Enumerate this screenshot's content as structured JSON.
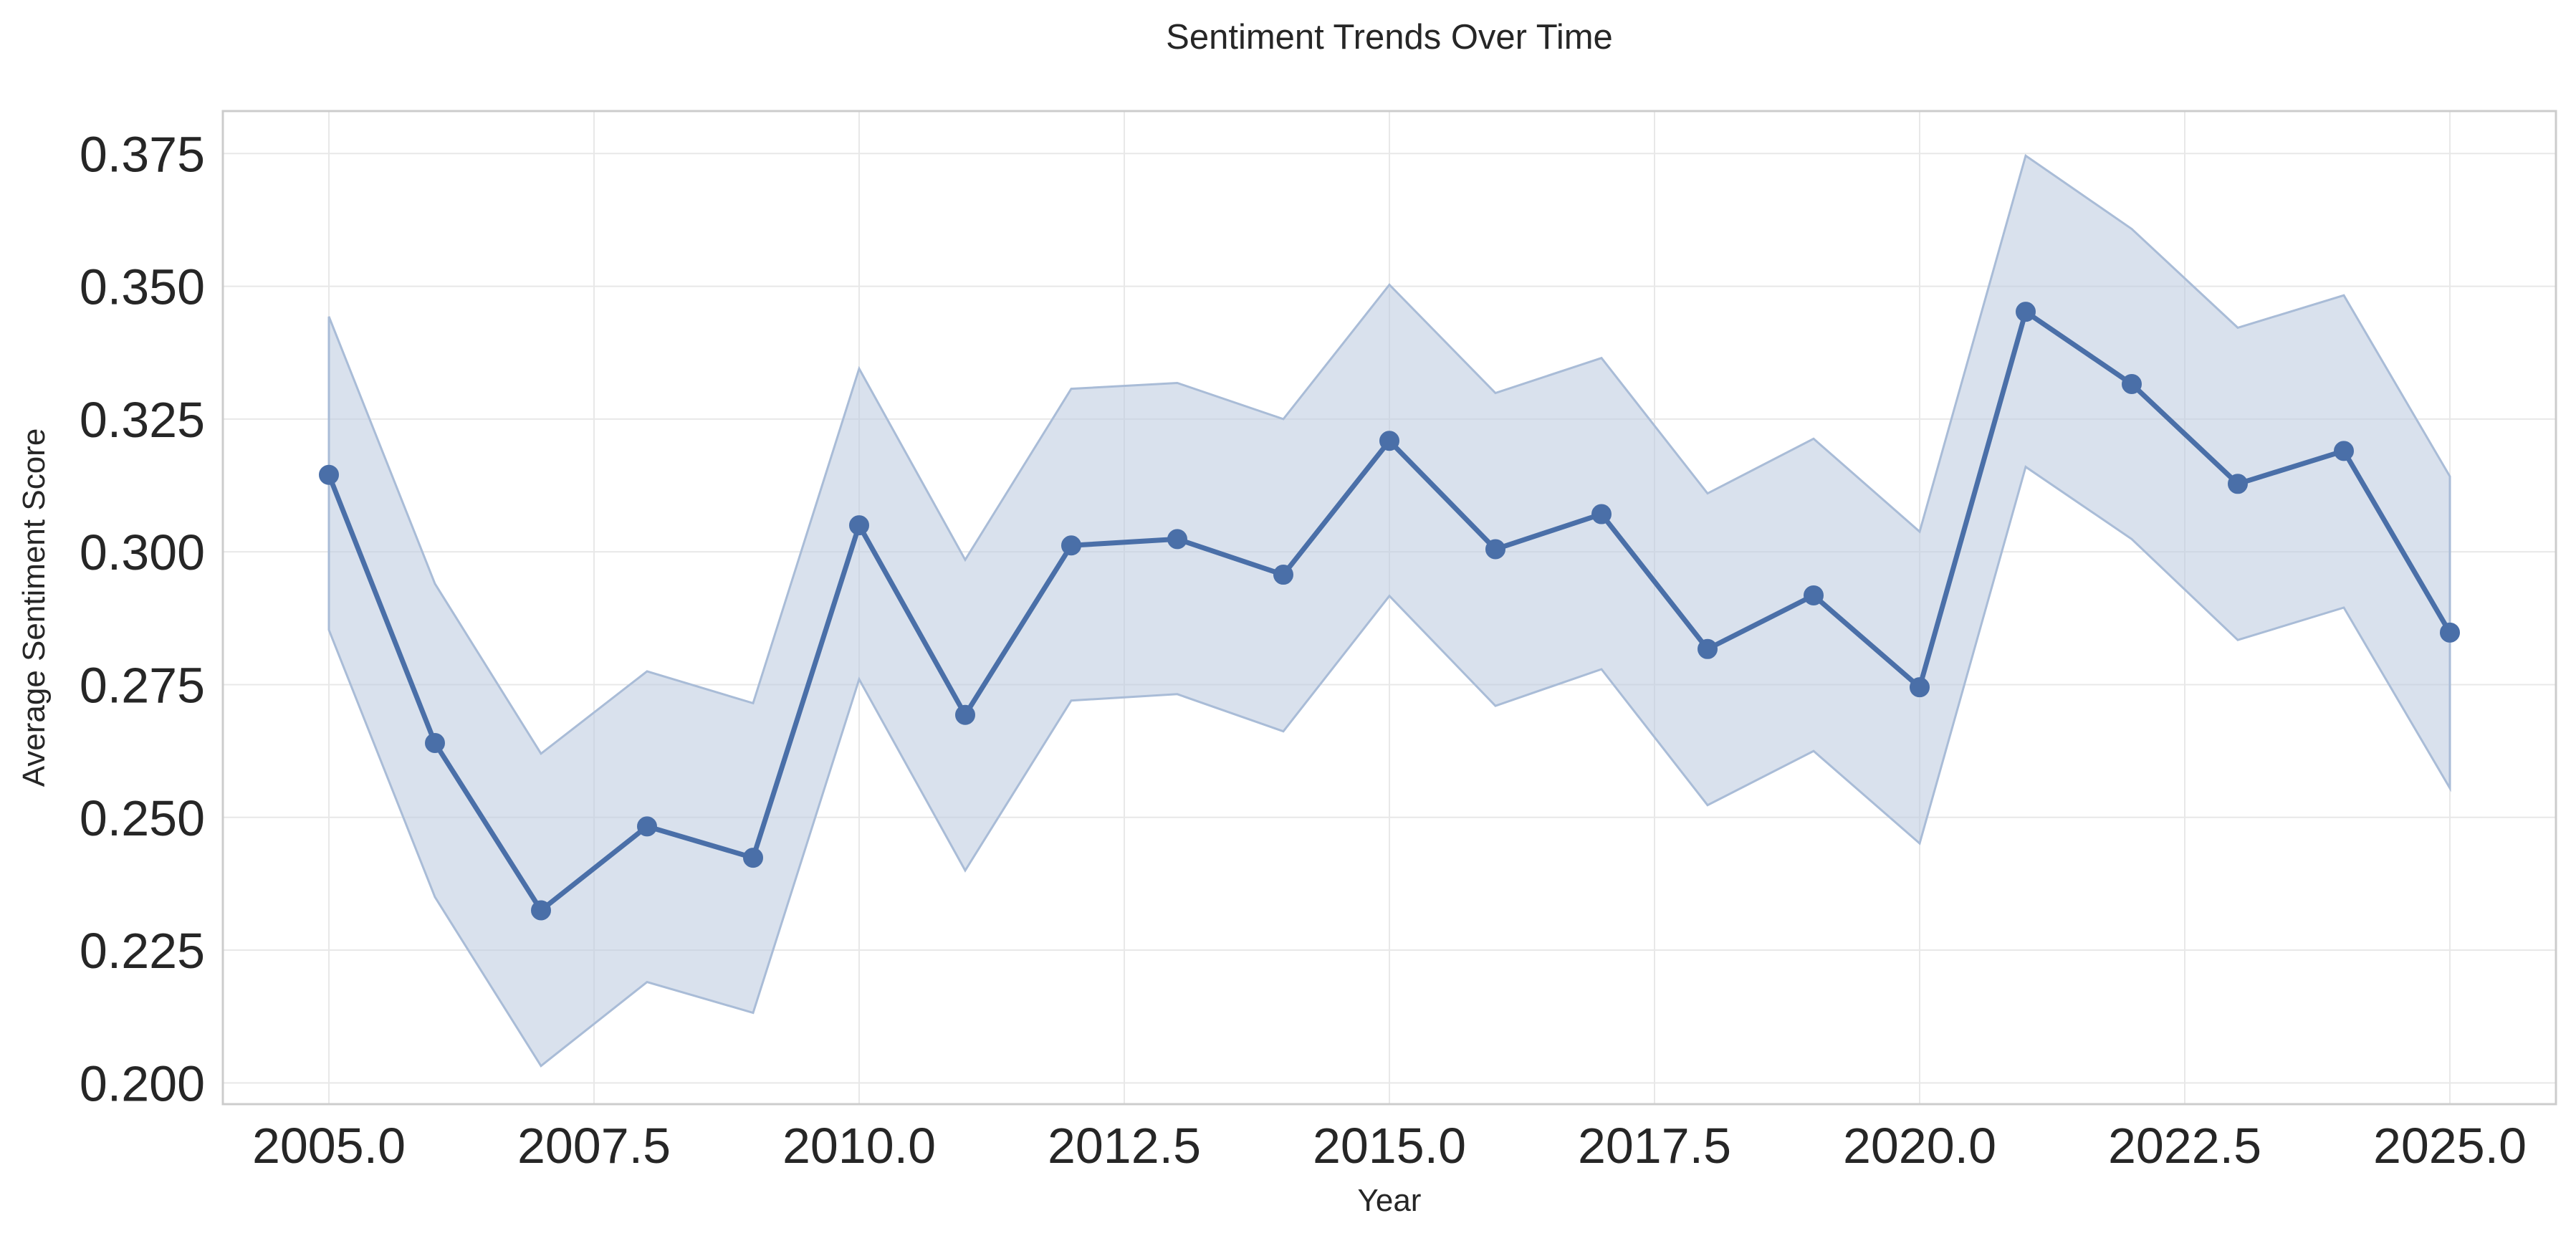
{
  "chart_data": {
    "type": "line",
    "title": "Sentiment Trends Over Time",
    "xlabel": "Year",
    "ylabel": "Average Sentiment Score",
    "xlim": [
      2004.0,
      2026.0
    ],
    "ylim": [
      0.196,
      0.383
    ],
    "xticks": [
      2005.0,
      2007.5,
      2010.0,
      2012.5,
      2015.0,
      2017.5,
      2020.0,
      2022.5,
      2025.0
    ],
    "xtick_labels": [
      "2005.0",
      "2007.5",
      "2010.0",
      "2012.5",
      "2015.0",
      "2017.5",
      "2020.0",
      "2022.5",
      "2025.0"
    ],
    "yticks": [
      0.2,
      0.225,
      0.25,
      0.275,
      0.3,
      0.325,
      0.35,
      0.375
    ],
    "ytick_labels": [
      "0.200",
      "0.225",
      "0.250",
      "0.275",
      "0.300",
      "0.325",
      "0.350",
      "0.375"
    ],
    "grid": true,
    "x": [
      2005,
      2006,
      2007,
      2008,
      2009,
      2010,
      2011,
      2012,
      2013,
      2014,
      2015,
      2016,
      2017,
      2018,
      2019,
      2020,
      2021,
      2022,
      2023,
      2024,
      2025
    ],
    "series": [
      {
        "values": [
          0.3145,
          0.264,
          0.2325,
          0.2483,
          0.2424,
          0.305,
          0.2693,
          0.3012,
          0.3024,
          0.2957,
          0.3209,
          0.3005,
          0.3071,
          0.2817,
          0.2918,
          0.2745,
          0.3452,
          0.3316,
          0.3128,
          0.319,
          0.2848
        ],
        "lower": [
          0.2853,
          0.235,
          0.2032,
          0.219,
          0.2132,
          0.276,
          0.24,
          0.272,
          0.2732,
          0.2662,
          0.2917,
          0.271,
          0.2779,
          0.2523,
          0.2625,
          0.2451,
          0.316,
          0.3024,
          0.2834,
          0.2895,
          0.2555
        ],
        "upper": [
          0.3443,
          0.294,
          0.262,
          0.2775,
          0.2715,
          0.3345,
          0.2985,
          0.3307,
          0.3318,
          0.325,
          0.3503,
          0.3299,
          0.3365,
          0.311,
          0.3213,
          0.3038,
          0.3746,
          0.3608,
          0.3422,
          0.3483,
          0.3142
        ]
      }
    ],
    "colors": {
      "line": "#4a6fa8",
      "band": "#b9c9df",
      "band_edge": "#a9bcd7",
      "grid": "#e8e8e8",
      "frame": "#cccccc",
      "text": "#262626"
    }
  }
}
